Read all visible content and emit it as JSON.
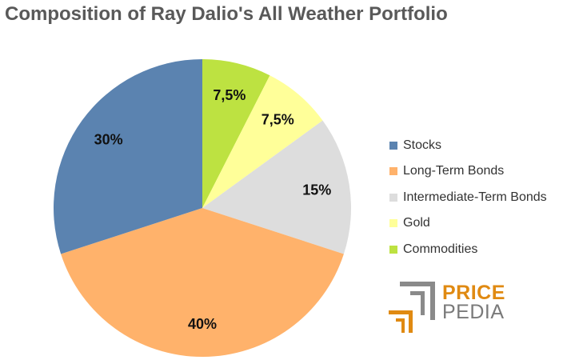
{
  "chart_data": {
    "type": "pie",
    "title": "Composition of Ray Dalio's All Weather Portfolio",
    "start": "top",
    "direction": "clockwise",
    "slices": [
      {
        "label": "Commodities",
        "value": 7.5,
        "value_label": "7,5%",
        "color": "#bde241"
      },
      {
        "label": "Gold",
        "value": 7.5,
        "value_label": "7,5%",
        "color": "#ffff99"
      },
      {
        "label": "Intermediate-Term Bonds",
        "value": 15,
        "value_label": "15%",
        "color": "#dddddd"
      },
      {
        "label": "Long-Term Bonds",
        "value": 40,
        "value_label": "40%",
        "color": "#ffb26b"
      },
      {
        "label": "Stocks",
        "value": 30,
        "value_label": "30%",
        "color": "#5b83b0"
      }
    ],
    "legend_order": [
      "Stocks",
      "Long-Term Bonds",
      "Intermediate-Term Bonds",
      "Gold",
      "Commodities"
    ],
    "legend_position": "right"
  },
  "logo": {
    "word_1": "PRICE",
    "word_2": "PEDIA",
    "colors": {
      "orange": "#e08a12",
      "gray": "#7a7a7a"
    }
  }
}
